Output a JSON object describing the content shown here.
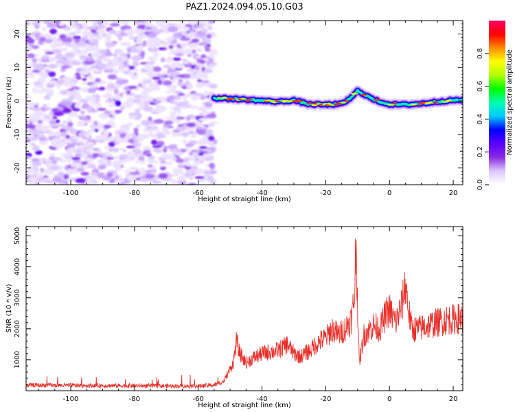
{
  "title": "PAZ1.2024.094.05.10.G03",
  "chart_data": [
    {
      "type": "heatmap",
      "xlabel": "Height of straight line (km)",
      "ylabel": "Frequency (Hz)",
      "xlim": [
        -114,
        23
      ],
      "ylim": [
        -25,
        24
      ],
      "xticks": [
        -100,
        -80,
        -60,
        -40,
        -20,
        0,
        20
      ],
      "yticks": [
        -20,
        -10,
        0,
        10,
        20
      ],
      "noise_region": [
        -114,
        -55
      ],
      "signal_track": [
        [
          -55,
          0.8
        ],
        [
          -50,
          0.7
        ],
        [
          -45,
          0.4
        ],
        [
          -40,
          0.1
        ],
        [
          -35,
          -0.2
        ],
        [
          -30,
          0.2
        ],
        [
          -25,
          -1.0
        ],
        [
          -20,
          -1.1
        ],
        [
          -15,
          -0.9
        ],
        [
          -12,
          1.0
        ],
        [
          -10,
          3.0
        ],
        [
          -7,
          1.5
        ],
        [
          -5,
          0.4
        ],
        [
          -2,
          -0.5
        ],
        [
          0,
          -1.0
        ],
        [
          5,
          -1.1
        ],
        [
          10,
          -0.8
        ],
        [
          15,
          -0.2
        ],
        [
          20,
          0.2
        ],
        [
          23,
          0.3
        ]
      ],
      "colorbar": {
        "label": "Normalized spectral amplitude",
        "range": [
          0,
          1
        ],
        "ticks": [
          "0.0",
          "0.2",
          "0.4",
          "0.6",
          "0.8"
        ],
        "colormap": [
          "#ffffff",
          "#dcc8ff",
          "#8a2be2",
          "#5a00ff",
          "#0000ff",
          "#00c8ff",
          "#00ffb0",
          "#00ff00",
          "#b0ff00",
          "#ffff00",
          "#ff8c00",
          "#ff0000",
          "#ff0066"
        ]
      }
    },
    {
      "type": "line",
      "xlabel": "Height of straight line (km)",
      "ylabel": "SNR (10 * v/v)",
      "xlim": [
        -114,
        23
      ],
      "ylim": [
        0,
        5300
      ],
      "xticks": [
        -100,
        -80,
        -60,
        -40,
        -20,
        0,
        20
      ],
      "yticks": [
        1000,
        2000,
        3000,
        4000,
        5000
      ],
      "color": "#e8302a",
      "envelope": [
        [
          -114,
          180
        ],
        [
          -100,
          170
        ],
        [
          -80,
          160
        ],
        [
          -60,
          150
        ],
        [
          -55,
          180
        ],
        [
          -52,
          300
        ],
        [
          -49,
          900
        ],
        [
          -48,
          1600
        ],
        [
          -47,
          1200
        ],
        [
          -45,
          900
        ],
        [
          -42,
          1100
        ],
        [
          -40,
          1200
        ],
        [
          -35,
          1300
        ],
        [
          -32,
          1500
        ],
        [
          -30,
          1200
        ],
        [
          -28,
          1100
        ],
        [
          -25,
          1300
        ],
        [
          -22,
          1600
        ],
        [
          -20,
          1700
        ],
        [
          -18,
          2000
        ],
        [
          -16,
          1800
        ],
        [
          -14,
          2000
        ],
        [
          -12,
          2300
        ],
        [
          -11,
          3000
        ],
        [
          -10.5,
          4800
        ],
        [
          -10,
          2800
        ],
        [
          -9.5,
          900
        ],
        [
          -8,
          1800
        ],
        [
          -5,
          2100
        ],
        [
          -3,
          2000
        ],
        [
          -1,
          2500
        ],
        [
          0,
          2600
        ],
        [
          2,
          2200
        ],
        [
          4,
          2800
        ],
        [
          5,
          3500
        ],
        [
          6,
          2600
        ],
        [
          7,
          2000
        ],
        [
          9,
          2000
        ],
        [
          12,
          2100
        ],
        [
          15,
          2200
        ],
        [
          18,
          2300
        ],
        [
          20,
          2300
        ],
        [
          23,
          2350
        ]
      ]
    }
  ]
}
